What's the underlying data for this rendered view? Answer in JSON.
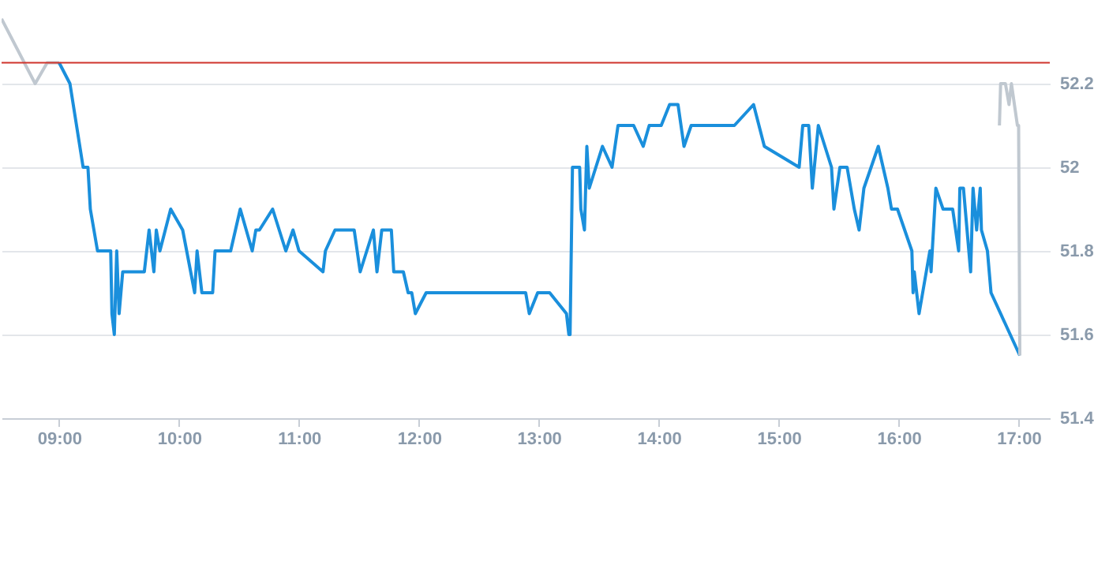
{
  "chart_data": {
    "type": "line",
    "xlim": [
      8.52,
      17.26
    ],
    "ylim": [
      51.4,
      52.4
    ],
    "xticks": [
      {
        "value": 9,
        "label": "09:00"
      },
      {
        "value": 10,
        "label": "10:00"
      },
      {
        "value": 11,
        "label": "11:00"
      },
      {
        "value": 12,
        "label": "12:00"
      },
      {
        "value": 13,
        "label": "13:00"
      },
      {
        "value": 14,
        "label": "14:00"
      },
      {
        "value": 15,
        "label": "15:00"
      },
      {
        "value": 16,
        "label": "16:00"
      },
      {
        "value": 17,
        "label": "17:00"
      }
    ],
    "yticks": [
      51.4,
      51.6,
      51.8,
      52,
      52.2
    ],
    "grid": "y",
    "legend": false,
    "marker": "none",
    "line_style": "solid",
    "ref_lines": [
      {
        "axis": "y",
        "value": 52.25,
        "color": "#d0342c"
      }
    ],
    "series": [
      {
        "color": "#c0c8d0",
        "x": [
          8.52,
          8.8,
          8.9,
          9.0
        ],
        "values": [
          52.355,
          52.2,
          52.25,
          52.25
        ]
      },
      {
        "color": "#1a8fdc",
        "x": [
          9.0,
          9.09,
          9.2,
          9.24,
          9.26,
          9.32,
          9.43,
          9.44,
          9.46,
          9.48,
          9.5,
          9.53,
          9.71,
          9.75,
          9.79,
          9.81,
          9.84,
          9.93,
          10.03,
          10.13,
          10.15,
          10.19,
          10.28,
          10.3,
          10.43,
          10.51,
          10.61,
          10.64,
          10.67,
          10.78,
          10.89,
          10.95,
          11.0,
          11.2,
          11.22,
          11.3,
          11.46,
          11.51,
          11.62,
          11.65,
          11.69,
          11.77,
          11.79,
          11.87,
          11.91,
          11.94,
          11.97,
          12.06,
          12.89,
          12.92,
          12.99,
          13.09,
          13.23,
          13.25,
          13.26,
          13.28,
          13.34,
          13.35,
          13.38,
          13.4,
          13.42,
          13.53,
          13.61,
          13.66,
          13.79,
          13.87,
          13.92,
          14.02,
          14.09,
          14.16,
          14.21,
          14.27,
          14.63,
          14.79,
          14.88,
          15.17,
          15.2,
          15.25,
          15.28,
          15.33,
          15.44,
          15.46,
          15.51,
          15.57,
          15.63,
          15.67,
          15.71,
          15.83,
          15.91,
          15.94,
          15.99,
          16.11,
          16.12,
          16.13,
          16.17,
          16.26,
          16.27,
          16.31,
          16.37,
          16.45,
          16.5,
          16.51,
          16.54,
          16.6,
          16.62,
          16.65,
          16.68,
          16.69,
          16.74,
          16.77,
          17.01
        ],
        "values": [
          52.25,
          52.2,
          52.0,
          52.0,
          51.9,
          51.8,
          51.8,
          51.65,
          51.6,
          51.8,
          51.65,
          51.75,
          51.75,
          51.85,
          51.75,
          51.85,
          51.8,
          51.9,
          51.85,
          51.7,
          51.8,
          51.7,
          51.7,
          51.8,
          51.8,
          51.9,
          51.8,
          51.85,
          51.85,
          51.9,
          51.8,
          51.85,
          51.8,
          51.75,
          51.8,
          51.85,
          51.85,
          51.75,
          51.85,
          51.75,
          51.85,
          51.85,
          51.75,
          51.75,
          51.7,
          51.7,
          51.65,
          51.7,
          51.7,
          51.65,
          51.7,
          51.7,
          51.65,
          51.6,
          51.6,
          52.0,
          52.0,
          51.9,
          51.85,
          52.05,
          51.95,
          52.05,
          52.0,
          52.1,
          52.1,
          52.05,
          52.1,
          52.1,
          52.15,
          52.15,
          52.05,
          52.1,
          52.1,
          52.15,
          52.05,
          52.0,
          52.1,
          52.1,
          51.95,
          52.1,
          52.0,
          51.9,
          52.0,
          52.0,
          51.9,
          51.85,
          51.95,
          52.05,
          51.95,
          51.9,
          51.9,
          51.8,
          51.7,
          51.75,
          51.65,
          51.8,
          51.75,
          51.95,
          51.9,
          51.9,
          51.8,
          51.95,
          51.95,
          51.75,
          51.95,
          51.85,
          51.95,
          51.85,
          51.8,
          51.7,
          51.55
        ]
      },
      {
        "color": "#c0c8d0",
        "x": [
          16.84,
          16.85,
          16.89,
          16.92,
          16.94,
          16.99,
          17.0,
          17.01
        ],
        "values": [
          52.1,
          52.2,
          52.2,
          52.15,
          52.2,
          52.1,
          52.1,
          51.55
        ]
      }
    ]
  }
}
